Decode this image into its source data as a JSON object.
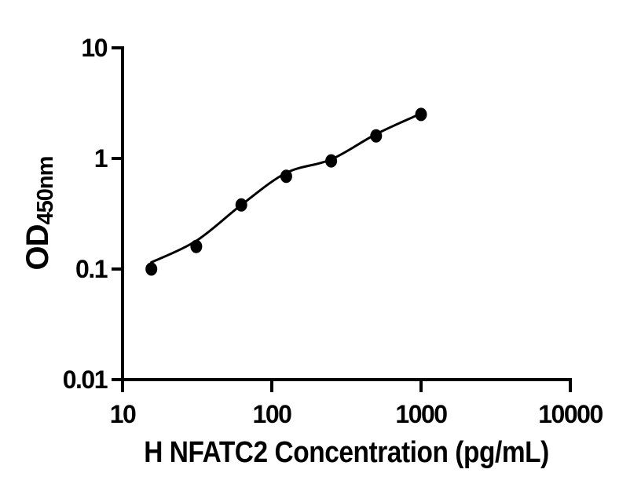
{
  "figure": {
    "background_color": "#ffffff",
    "ink_color": "#000000"
  },
  "chart_data": {
    "type": "scatter",
    "title": "",
    "xlabel": "H NFATC2 Concentration (pg/mL)",
    "ylabel_main": "OD",
    "ylabel_sub": "450nm",
    "x_scale": "log10",
    "y_scale": "log10",
    "xlim": [
      10,
      10000
    ],
    "ylim": [
      0.01,
      10
    ],
    "grid": false,
    "legend": null,
    "x_ticks": [
      {
        "value": 10,
        "label": "10"
      },
      {
        "value": 100,
        "label": "100"
      },
      {
        "value": 1000,
        "label": "1000"
      },
      {
        "value": 10000,
        "label": "10000"
      }
    ],
    "y_ticks": [
      {
        "value": 10,
        "label": "10"
      },
      {
        "value": 1,
        "label": "1"
      },
      {
        "value": 0.1,
        "label": "0.1"
      },
      {
        "value": 0.01,
        "label": "0.01"
      }
    ],
    "series": [
      {
        "name": "standards",
        "type": "scatter",
        "marker": "filled-circle",
        "color": "#000000",
        "x": [
          15.6,
          31.2,
          62.5,
          125,
          250,
          500,
          1000
        ],
        "y": [
          0.1,
          0.16,
          0.38,
          0.69,
          0.95,
          1.6,
          2.5
        ]
      },
      {
        "name": "fit_line",
        "type": "line",
        "color": "#000000",
        "x": [
          15.6,
          31.2,
          62.5,
          125,
          250,
          500,
          1000
        ],
        "y": [
          0.115,
          0.18,
          0.38,
          0.74,
          0.98,
          1.66,
          2.55
        ]
      }
    ]
  }
}
